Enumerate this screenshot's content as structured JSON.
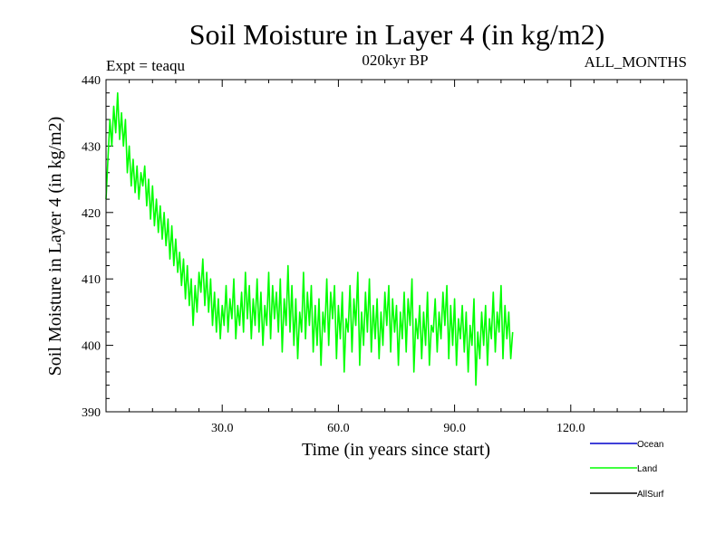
{
  "chart_data": {
    "type": "line",
    "title": "Soil Moisture in Layer 4 (in kg/m2)",
    "subtitle_left": "Expt = teaqu",
    "subtitle_center": "020kyr BP",
    "subtitle_right": "ALL_MONTHS",
    "xlabel": "Time (in years since start)",
    "ylabel": "Soil Moisture in Layer 4 (in kg/m2)",
    "xlim": [
      0,
      150
    ],
    "ylim": [
      390,
      440
    ],
    "x_ticks": [
      30,
      60,
      90,
      120
    ],
    "x_tick_labels": [
      "30.0",
      "60.0",
      "90.0",
      "120.0"
    ],
    "y_ticks": [
      390,
      400,
      410,
      420,
      430,
      440
    ],
    "y_tick_labels": [
      "390",
      "400",
      "410",
      "420",
      "430",
      "440"
    ],
    "legend": [
      {
        "name": "Ocean",
        "color": "#0000cc"
      },
      {
        "name": "Land",
        "color": "#00ff00"
      },
      {
        "name": "AllSurf",
        "color": "#000000"
      }
    ],
    "series": [
      {
        "name": "Land",
        "color": "#00ff00",
        "x_start": 0,
        "x_step": 0.5,
        "values": [
          422,
          428,
          434,
          430,
          436,
          432,
          438,
          431,
          435,
          430,
          434,
          426,
          430,
          424,
          428,
          423,
          427,
          422,
          426,
          424,
          427,
          421,
          425,
          419,
          424,
          418,
          422,
          417,
          421,
          416,
          420,
          415,
          419,
          413,
          418,
          412,
          416,
          411,
          414,
          409,
          413,
          407,
          412,
          406,
          410,
          403,
          409,
          405,
          411,
          408,
          413,
          406,
          411,
          405,
          410,
          403,
          408,
          402,
          407,
          401,
          406,
          403,
          409,
          402,
          407,
          404,
          410,
          401,
          406,
          403,
          408,
          402,
          411,
          404,
          409,
          401,
          407,
          403,
          410,
          402,
          408,
          400,
          406,
          403,
          411,
          401,
          409,
          404,
          408,
          402,
          410,
          399,
          407,
          403,
          412,
          402,
          409,
          400,
          407,
          398,
          405,
          402,
          411,
          401,
          408,
          403,
          409,
          399,
          406,
          400,
          407,
          397,
          405,
          402,
          410,
          400,
          408,
          404,
          409,
          398,
          406,
          401,
          408,
          396,
          404,
          402,
          409,
          399,
          407,
          403,
          411,
          397,
          405,
          400,
          408,
          402,
          410,
          399,
          406,
          401,
          407,
          398,
          405,
          400,
          408,
          403,
          409,
          399,
          407,
          402,
          406,
          397,
          405,
          401,
          408,
          399,
          407,
          403,
          410,
          396,
          404,
          401,
          406,
          398,
          405,
          400,
          408,
          397,
          403,
          402,
          407,
          399,
          405,
          401,
          408,
          403,
          409,
          398,
          406,
          400,
          407,
          397,
          404,
          401,
          406,
          399,
          405,
          396,
          403,
          400,
          407,
          394,
          402,
          398,
          405,
          400,
          406,
          397,
          404,
          401,
          408,
          399,
          405,
          402,
          409,
          398,
          406,
          401,
          405,
          398,
          402
        ]
      }
    ]
  }
}
